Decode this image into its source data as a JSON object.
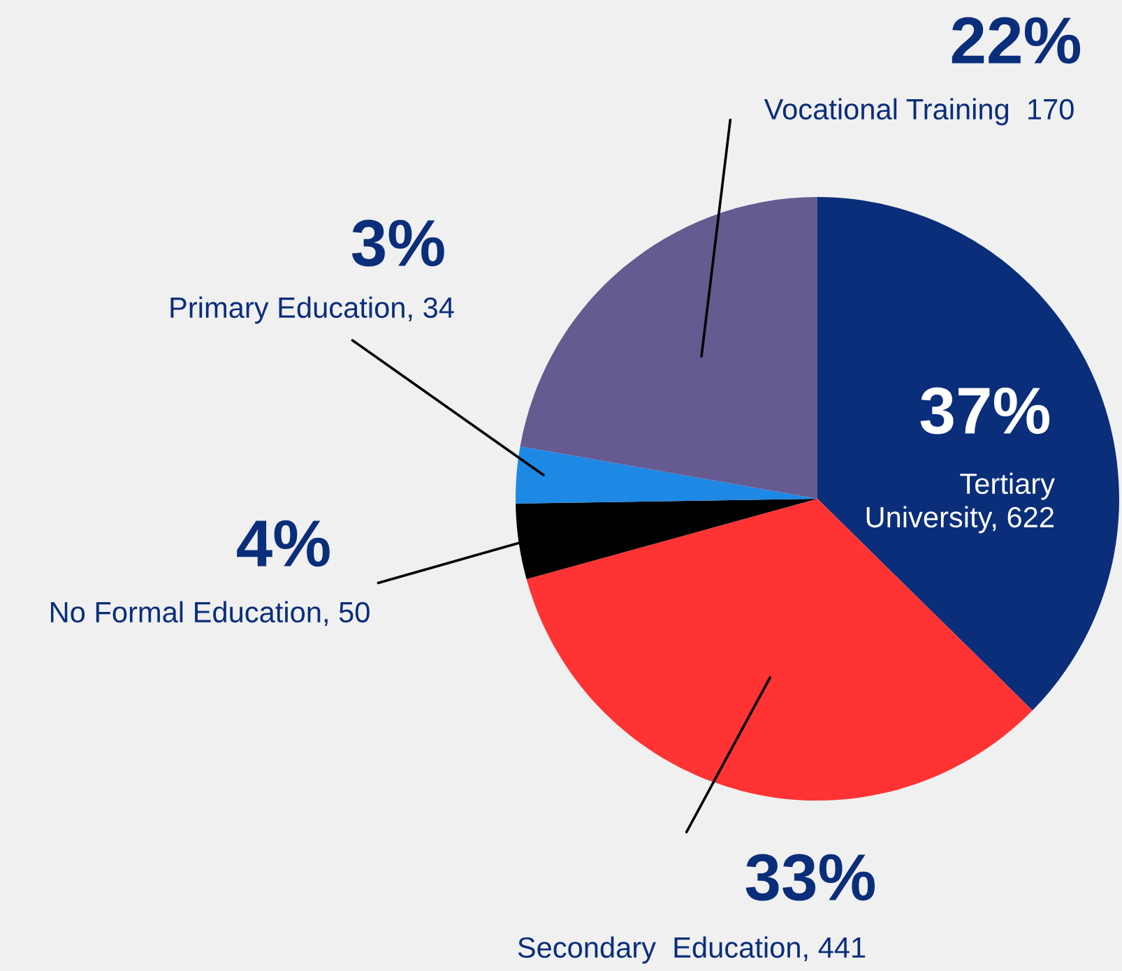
{
  "chart_data": {
    "type": "pie",
    "categories": [
      "Tertiary\nUniversity, 622",
      "Secondary  Education, 441",
      "No Formal Education, 50",
      "Primary Education, 34",
      "Vocational Training  170"
    ],
    "values": [
      37,
      33,
      4,
      3,
      22
    ],
    "value_labels": [
      "37%",
      "33%",
      "4%",
      "3%",
      "22%"
    ],
    "colors": [
      "#0a2e7a",
      "#ff3333",
      "#000000",
      "#1e88e5",
      "#655b91"
    ],
    "legend": false
  }
}
